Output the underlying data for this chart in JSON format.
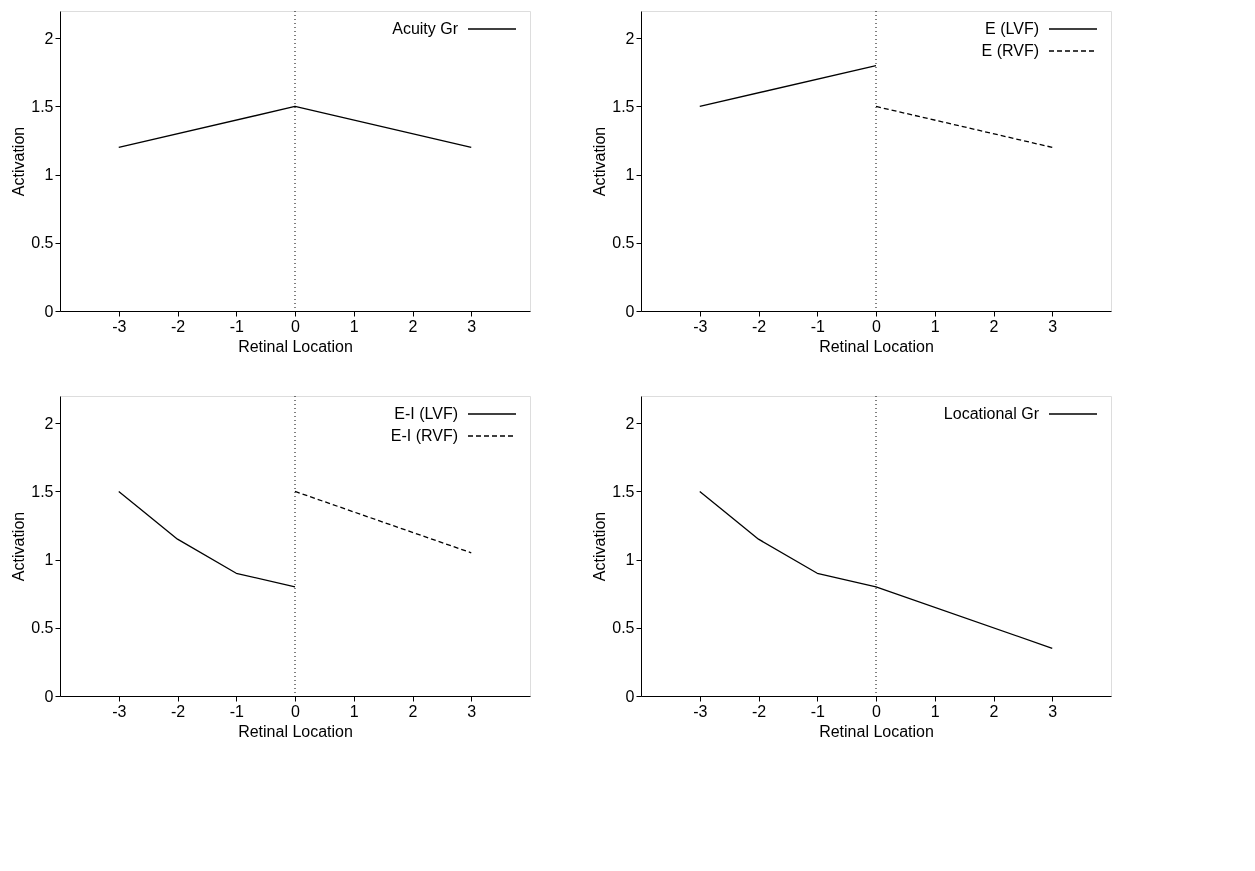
{
  "chart_data": [
    {
      "type": "line",
      "xlabel": "Retinal Location",
      "ylabel": "Activation",
      "xlim": [
        -4,
        4
      ],
      "xticks": [
        -3,
        -2,
        -1,
        0,
        1,
        2,
        3
      ],
      "ylim": [
        0,
        2.2
      ],
      "yticks": [
        0,
        0.5,
        1,
        1.5,
        2
      ],
      "grid": false,
      "legend": "top right",
      "marker": "none",
      "series": [
        {
          "name": "Acuity Gr",
          "color": "#000000",
          "line_style": "solid",
          "x": [
            -3,
            0,
            3
          ],
          "values": [
            1.2,
            1.5,
            1.2
          ]
        }
      ],
      "ref_lines": [
        {
          "axis": "x",
          "value": 0,
          "color": "#000000",
          "line_style": "dotted"
        }
      ]
    },
    {
      "type": "line",
      "xlabel": "Retinal Location",
      "ylabel": "Activation",
      "xlim": [
        -4,
        4
      ],
      "xticks": [
        -3,
        -2,
        -1,
        0,
        1,
        2,
        3
      ],
      "ylim": [
        0,
        2.2
      ],
      "yticks": [
        0,
        0.5,
        1,
        1.5,
        2
      ],
      "grid": false,
      "legend": "top right",
      "marker": "none",
      "series": [
        {
          "name": "E (LVF)",
          "color": "#000000",
          "line_style": "solid",
          "x": [
            -3,
            0
          ],
          "values": [
            1.5,
            1.8
          ]
        },
        {
          "name": "E (RVF)",
          "color": "#000000",
          "line_style": "dashed",
          "x": [
            0,
            3
          ],
          "values": [
            1.5,
            1.2
          ]
        }
      ],
      "ref_lines": [
        {
          "axis": "x",
          "value": 0,
          "color": "#000000",
          "line_style": "dotted"
        }
      ]
    },
    {
      "type": "line",
      "xlabel": "Retinal Location",
      "ylabel": "Activation",
      "xlim": [
        -4,
        4
      ],
      "xticks": [
        -3,
        -2,
        -1,
        0,
        1,
        2,
        3
      ],
      "ylim": [
        0,
        2.2
      ],
      "yticks": [
        0,
        0.5,
        1,
        1.5,
        2
      ],
      "grid": false,
      "legend": "top right",
      "marker": "none",
      "series": [
        {
          "name": "E-I (LVF)",
          "color": "#000000",
          "line_style": "solid",
          "x": [
            -3,
            -2,
            -1,
            0
          ],
          "values": [
            1.5,
            1.15,
            0.9,
            0.8
          ]
        },
        {
          "name": "E-I (RVF)",
          "color": "#000000",
          "line_style": "dashed",
          "x": [
            0,
            3
          ],
          "values": [
            1.5,
            1.05
          ]
        }
      ],
      "ref_lines": [
        {
          "axis": "x",
          "value": 0,
          "color": "#000000",
          "line_style": "dotted"
        }
      ]
    },
    {
      "type": "line",
      "xlabel": "Retinal Location",
      "ylabel": "Activation",
      "xlim": [
        -4,
        4
      ],
      "xticks": [
        -3,
        -2,
        -1,
        0,
        1,
        2,
        3
      ],
      "ylim": [
        0,
        2.2
      ],
      "yticks": [
        0,
        0.5,
        1,
        1.5,
        2
      ],
      "grid": false,
      "legend": "top right",
      "marker": "none",
      "series": [
        {
          "name": "Locational Gr",
          "color": "#000000",
          "line_style": "solid",
          "x": [
            -3,
            -2,
            -1,
            0,
            3
          ],
          "values": [
            1.5,
            1.15,
            0.9,
            0.8,
            0.35
          ]
        }
      ],
      "ref_lines": [
        {
          "axis": "x",
          "value": 0,
          "color": "#000000",
          "line_style": "dotted"
        }
      ]
    }
  ]
}
